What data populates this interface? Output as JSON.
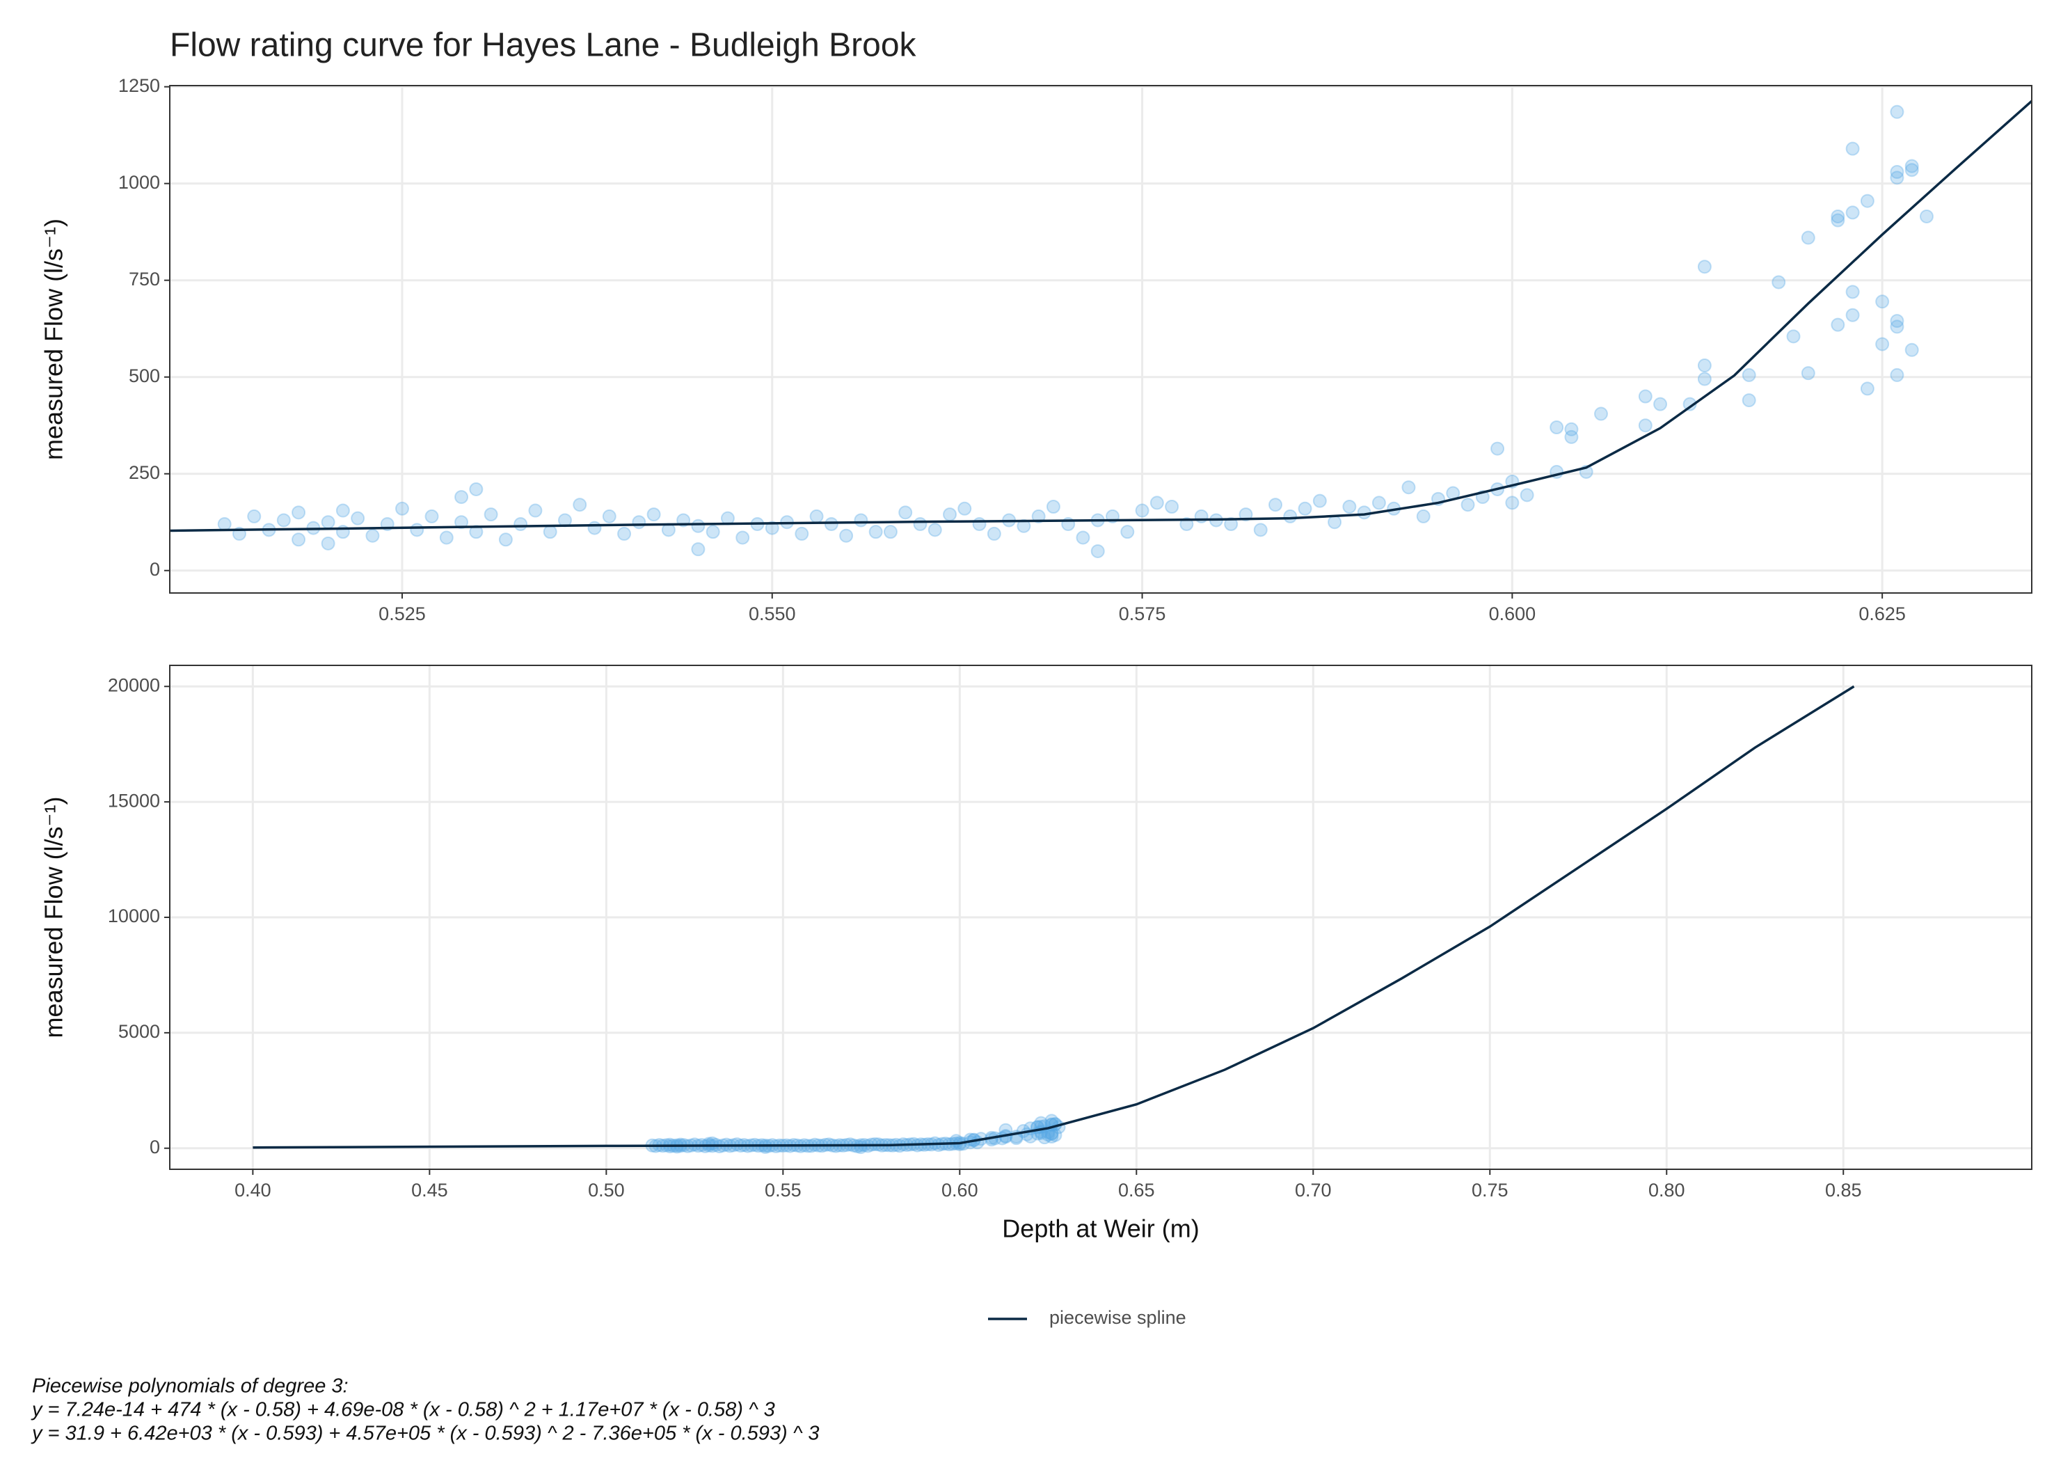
{
  "chart_data": [
    {
      "type": "scatter",
      "title": "Flow rating curve for Hayes Lane - Budleigh Brook",
      "y_label": "measured Flow (l/s⁻¹)",
      "xlim": [
        0.5093,
        0.6351
      ],
      "ylim": [
        -58,
        1253
      ],
      "xticks": [
        0.525,
        {
          "value": 0.55,
          "label": "0.550"
        },
        0.575,
        {
          "value": 0.6,
          "label": "0.600"
        },
        0.625
      ],
      "yticks": [
        0,
        250,
        500,
        750,
        1000,
        1250
      ],
      "grid": true,
      "series": [
        {
          "type": "scatter",
          "color": "#5aa9e6",
          "x": [
            0.513,
            0.514,
            0.515,
            0.516,
            0.517,
            0.518,
            0.518,
            0.519,
            0.52,
            0.52,
            0.521,
            0.521,
            0.522,
            0.523,
            0.524,
            0.525,
            0.526,
            0.527,
            0.528,
            0.529,
            0.529,
            0.53,
            0.53,
            0.531,
            0.532,
            0.533,
            0.534,
            0.535,
            0.536,
            0.537,
            0.538,
            0.539,
            0.54,
            0.541,
            0.542,
            0.543,
            0.544,
            0.545,
            0.545,
            0.546,
            0.547,
            0.548,
            0.549,
            0.55,
            0.551,
            0.552,
            0.553,
            0.554,
            0.555,
            0.556,
            0.557,
            0.558,
            0.559,
            0.56,
            0.561,
            0.562,
            0.563,
            0.564,
            0.565,
            0.566,
            0.567,
            0.568,
            0.569,
            0.57,
            0.571,
            0.572,
            0.572,
            0.573,
            0.574,
            0.575,
            0.576,
            0.577,
            0.578,
            0.579,
            0.58,
            0.581,
            0.582,
            0.583,
            0.584,
            0.585,
            0.586,
            0.587,
            0.588,
            0.589,
            0.59,
            0.591,
            0.592,
            0.593,
            0.594,
            0.595,
            0.596,
            0.597,
            0.598,
            0.599,
            0.599,
            0.6,
            0.6,
            0.601,
            0.603,
            0.603,
            0.604,
            0.604,
            0.605,
            0.606,
            0.609,
            0.609,
            0.61,
            0.612,
            0.613,
            0.613,
            0.613,
            0.616,
            0.616,
            0.618,
            0.619,
            0.62,
            0.62,
            0.622,
            0.622,
            0.622,
            0.623,
            0.623,
            0.623,
            0.623,
            0.624,
            0.624,
            0.625,
            0.625,
            0.626,
            0.626,
            0.626,
            0.626,
            0.626,
            0.626,
            0.627,
            0.627,
            0.627,
            0.628
          ],
          "values": [
            120,
            95,
            140,
            105,
            130,
            80,
            150,
            110,
            125,
            70,
            155,
            100,
            135,
            90,
            120,
            160,
            105,
            140,
            85,
            190,
            125,
            210,
            100,
            145,
            80,
            120,
            155,
            100,
            130,
            170,
            110,
            140,
            95,
            125,
            145,
            105,
            130,
            55,
            115,
            100,
            135,
            85,
            120,
            110,
            125,
            95,
            140,
            120,
            90,
            130,
            100,
            100,
            150,
            120,
            105,
            145,
            160,
            120,
            95,
            130,
            115,
            140,
            165,
            120,
            85,
            50,
            130,
            140,
            100,
            155,
            175,
            165,
            120,
            140,
            130,
            120,
            145,
            105,
            170,
            140,
            160,
            180,
            125,
            165,
            150,
            175,
            160,
            215,
            140,
            185,
            200,
            170,
            190,
            315,
            210,
            175,
            230,
            195,
            370,
            255,
            345,
            365,
            255,
            405,
            450,
            375,
            430,
            430,
            785,
            530,
            495,
            505,
            440,
            745,
            605,
            860,
            510,
            905,
            915,
            635,
            1090,
            925,
            720,
            660,
            955,
            470,
            695,
            585,
            1185,
            1015,
            1030,
            645,
            630,
            505,
            1045,
            1035,
            570,
            915
          ]
        },
        {
          "type": "line",
          "color": "#0b2a45",
          "x": [
            0.5093,
            0.52,
            0.53,
            0.54,
            0.55,
            0.56,
            0.57,
            0.58,
            0.585,
            0.59,
            0.595,
            0.6,
            0.605,
            0.61,
            0.615,
            0.62,
            0.625,
            0.63,
            0.6351
          ],
          "values": [
            103,
            108,
            113,
            118,
            122,
            126,
            129,
            132,
            135,
            145,
            175,
            220,
            266,
            368,
            504,
            690,
            868,
            1040,
            1213
          ]
        }
      ]
    },
    {
      "type": "scatter",
      "y_label": "measured Flow (l/s⁻¹)",
      "x_label": "Depth at Weir (m)",
      "xlim": [
        0.3765,
        0.9033
      ],
      "ylim": [
        -912,
        20912
      ],
      "xticks": [
        {
          "value": 0.4,
          "label": "0.40"
        },
        0.45,
        {
          "value": 0.5,
          "label": "0.50"
        },
        0.55,
        {
          "value": 0.6,
          "label": "0.60"
        },
        0.65,
        {
          "value": 0.7,
          "label": "0.70"
        },
        0.75,
        {
          "value": 0.8,
          "label": "0.80"
        },
        0.85
      ],
      "yticks": [
        0,
        5000,
        10000,
        15000,
        20000
      ],
      "grid": true,
      "legend": "bottom",
      "series": [
        {
          "type": "scatter",
          "color": "#5aa9e6",
          "x": [
            0.513,
            0.514,
            0.515,
            0.516,
            0.517,
            0.518,
            0.518,
            0.519,
            0.52,
            0.52,
            0.521,
            0.521,
            0.522,
            0.523,
            0.524,
            0.525,
            0.526,
            0.527,
            0.528,
            0.529,
            0.529,
            0.53,
            0.53,
            0.531,
            0.532,
            0.533,
            0.534,
            0.535,
            0.536,
            0.537,
            0.538,
            0.539,
            0.54,
            0.541,
            0.542,
            0.543,
            0.544,
            0.545,
            0.545,
            0.546,
            0.547,
            0.548,
            0.549,
            0.55,
            0.551,
            0.552,
            0.553,
            0.554,
            0.555,
            0.556,
            0.557,
            0.558,
            0.559,
            0.56,
            0.561,
            0.562,
            0.563,
            0.564,
            0.565,
            0.566,
            0.567,
            0.568,
            0.569,
            0.57,
            0.571,
            0.572,
            0.572,
            0.573,
            0.574,
            0.575,
            0.576,
            0.577,
            0.578,
            0.579,
            0.58,
            0.581,
            0.582,
            0.583,
            0.584,
            0.585,
            0.586,
            0.587,
            0.588,
            0.589,
            0.59,
            0.591,
            0.592,
            0.593,
            0.594,
            0.595,
            0.596,
            0.597,
            0.598,
            0.599,
            0.599,
            0.6,
            0.6,
            0.601,
            0.603,
            0.603,
            0.604,
            0.604,
            0.605,
            0.606,
            0.609,
            0.609,
            0.61,
            0.612,
            0.613,
            0.613,
            0.613,
            0.616,
            0.616,
            0.618,
            0.619,
            0.62,
            0.62,
            0.622,
            0.622,
            0.622,
            0.623,
            0.623,
            0.623,
            0.623,
            0.624,
            0.624,
            0.625,
            0.625,
            0.626,
            0.626,
            0.626,
            0.626,
            0.626,
            0.626,
            0.627,
            0.627,
            0.627,
            0.628
          ],
          "values": [
            120,
            95,
            140,
            105,
            130,
            80,
            150,
            110,
            125,
            70,
            155,
            100,
            135,
            90,
            120,
            160,
            105,
            140,
            85,
            190,
            125,
            210,
            100,
            145,
            80,
            120,
            155,
            100,
            130,
            170,
            110,
            140,
            95,
            125,
            145,
            105,
            130,
            55,
            115,
            100,
            135,
            85,
            120,
            110,
            125,
            95,
            140,
            120,
            90,
            130,
            100,
            100,
            150,
            120,
            105,
            145,
            160,
            120,
            95,
            130,
            115,
            140,
            165,
            120,
            85,
            50,
            130,
            140,
            100,
            155,
            175,
            165,
            120,
            140,
            130,
            120,
            145,
            105,
            170,
            140,
            160,
            180,
            125,
            165,
            150,
            175,
            160,
            215,
            140,
            185,
            200,
            170,
            190,
            315,
            210,
            175,
            230,
            195,
            370,
            255,
            345,
            365,
            255,
            405,
            450,
            375,
            430,
            430,
            785,
            530,
            495,
            505,
            440,
            745,
            605,
            860,
            510,
            905,
            915,
            635,
            1090,
            925,
            720,
            660,
            955,
            470,
            695,
            585,
            1185,
            1015,
            1030,
            645,
            630,
            505,
            1045,
            1035,
            570,
            915
          ]
        },
        {
          "type": "line",
          "name": "piecewise spline",
          "color": "#0b2a45",
          "x": [
            0.4,
            0.5,
            0.58,
            0.6,
            0.625,
            0.65,
            0.675,
            0.7,
            0.725,
            0.75,
            0.775,
            0.8,
            0.825,
            0.853
          ],
          "values": [
            30,
            100,
            132,
            220,
            868,
            1900,
            3400,
            5200,
            7350,
            9600,
            12150,
            14700,
            17350,
            20000
          ]
        }
      ]
    }
  ],
  "caption": [
    "Piecewise polynomials of degree 3:",
    "y = 7.24e-14 + 474 * (x - 0.58) + 4.69e-08 * (x - 0.58) ^ 2 + 1.17e+07 * (x - 0.58) ^ 3",
    "y = 31.9 + 6.42e+03 * (x - 0.593) + 4.57e+05 * (x - 0.593) ^ 2 - 7.36e+05 * (x - 0.593) ^ 3"
  ]
}
